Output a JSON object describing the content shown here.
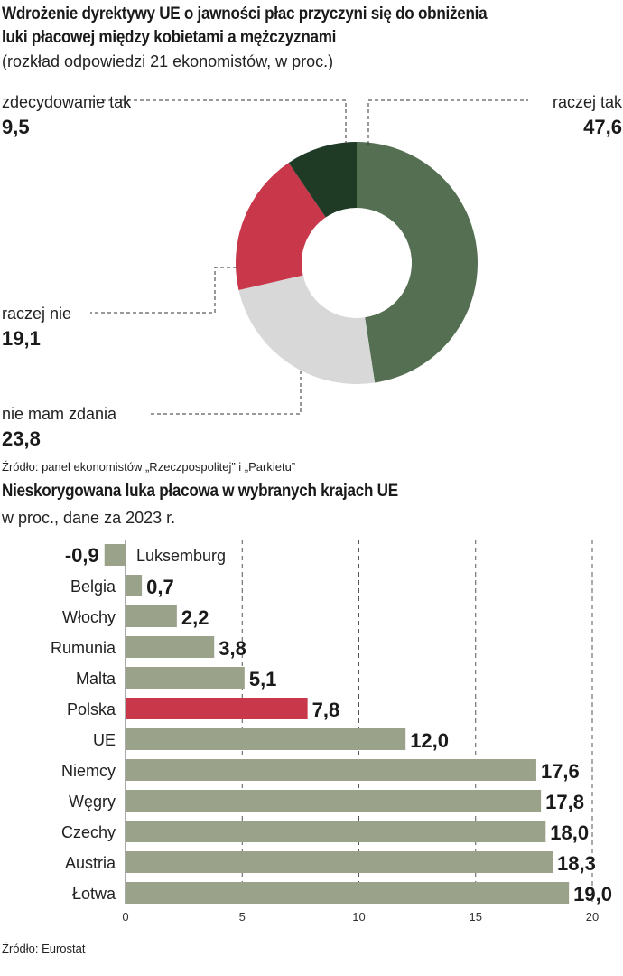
{
  "chart1": {
    "title_line1": "Wdrożenie dyrektywy UE o jawności płac przyczyni się do obniżenia",
    "title_line2": "luki płacowej między kobietami a mężczyznami",
    "subtitle": "(rozkład odpowiedzi 21 ekonomistów, w proc.)",
    "source": "Źródło: panel ekonomistów „Rzeczpospolitej” i „Parkietu”"
  },
  "chart2": {
    "title": "Nieskorygowana luka płacowa w wybranych krajach UE",
    "subtitle": "w proc., dane za 2023 r.",
    "source": "Źródło: Eurostat"
  },
  "colors": {
    "raczej_tak": "#546f51",
    "zdecydowanie_tak": "#1f3b26",
    "raczej_nie": "#c8374a",
    "nie_mam_zdania": "#d8d8d8",
    "bar_default": "#9aa38a",
    "bar_highlight": "#c8374a"
  },
  "chart_data": [
    {
      "type": "pie",
      "labels": [
        "raczej tak",
        "nie mam zdania",
        "raczej nie",
        "zdecydowanie tak"
      ],
      "values": [
        47.6,
        23.8,
        19.1,
        9.5
      ],
      "value_labels": [
        "47,6",
        "23,8",
        "19,1",
        "9,5"
      ]
    },
    {
      "type": "bar",
      "orientation": "horizontal",
      "categories": [
        "Luksemburg",
        "Belgia",
        "Włochy",
        "Rumunia",
        "Malta",
        "Polska",
        "UE",
        "Niemcy",
        "Węgry",
        "Czechy",
        "Austria",
        "Łotwa"
      ],
      "values": [
        -0.9,
        0.7,
        2.2,
        3.8,
        5.1,
        7.8,
        12.0,
        17.6,
        17.8,
        18.0,
        18.3,
        19.0
      ],
      "value_labels": [
        "-0,9",
        "0,7",
        "2,2",
        "3,8",
        "5,1",
        "7,8",
        "12,0",
        "17,6",
        "17,8",
        "18,0",
        "18,3",
        "19,0"
      ],
      "highlight": "Polska",
      "xlim": [
        0,
        20
      ],
      "xticks": [
        0,
        5,
        10,
        15,
        20
      ],
      "grid": true
    }
  ]
}
